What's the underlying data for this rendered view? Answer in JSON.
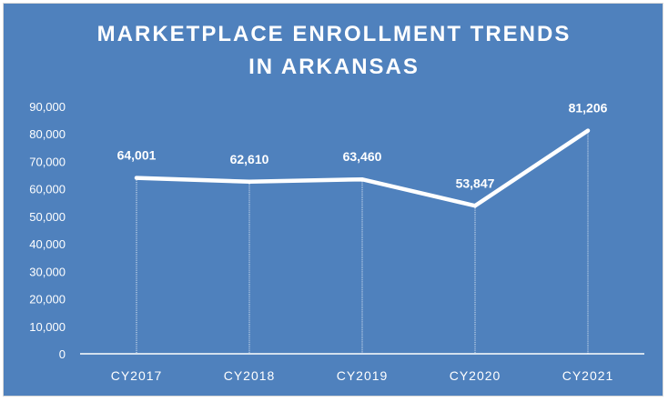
{
  "colors": {
    "background": "#4f81bd",
    "foreground": "#ffffff"
  },
  "chart_data": {
    "type": "line",
    "title_lines": [
      "MARKETPLACE ENROLLMENT TRENDS",
      "IN ARKANSAS"
    ],
    "categories": [
      "CY2017",
      "CY2018",
      "CY2019",
      "CY2020",
      "CY2021"
    ],
    "values": [
      64001,
      62610,
      63460,
      53847,
      81206
    ],
    "data_labels": [
      "64,001",
      "62,610",
      "63,460",
      "53,847",
      "81,206"
    ],
    "ylim": [
      0,
      90000
    ],
    "yticks": [
      "0",
      "10,000",
      "20,000",
      "30,000",
      "40,000",
      "50,000",
      "60,000",
      "70,000",
      "80,000",
      "90,000"
    ],
    "xlabel": "",
    "ylabel": "",
    "grid": false,
    "legend": "none"
  }
}
